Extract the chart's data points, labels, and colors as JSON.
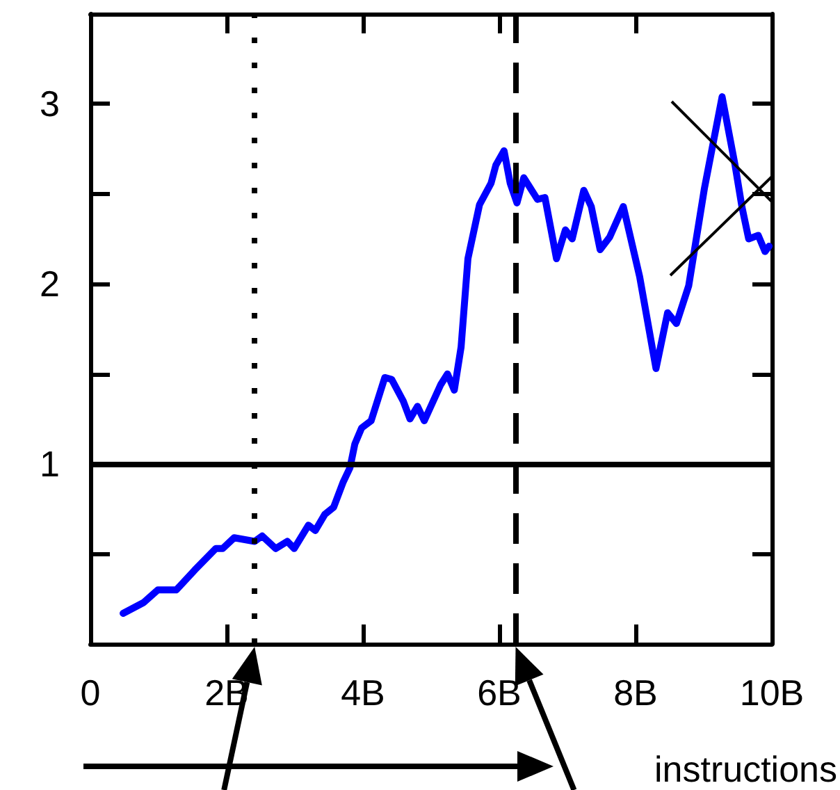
{
  "chart_data": {
    "type": "line",
    "xlabel": "instructions",
    "color": "#0000ff",
    "marker": "none",
    "line_style": "solid",
    "grid": false,
    "x": [
      0.48,
      0.78,
      0.99,
      1.26,
      1.53,
      1.84,
      1.94,
      2.11,
      2.41,
      2.52,
      2.72,
      2.89,
      2.99,
      3.2,
      3.3,
      3.44,
      3.57,
      3.71,
      3.81,
      3.88,
      3.98,
      4.12,
      4.32,
      4.42,
      4.59,
      4.69,
      4.8,
      4.9,
      5.14,
      5.24,
      5.34,
      5.44,
      5.54,
      5.71,
      5.88,
      5.95,
      6.07,
      6.16,
      6.26,
      6.36,
      6.56,
      6.67,
      6.84,
      6.97,
      7.07,
      7.24,
      7.35,
      7.48,
      7.62,
      7.82,
      8.06,
      8.3,
      8.47,
      8.6,
      8.78,
      9.01,
      9.27,
      9.46,
      9.56,
      9.66,
      9.8,
      9.9,
      9.96
    ],
    "values": [
      0.17,
      0.23,
      0.3,
      0.3,
      0.41,
      0.53,
      0.53,
      0.59,
      0.57,
      0.6,
      0.53,
      0.57,
      0.53,
      0.66,
      0.63,
      0.72,
      0.76,
      0.9,
      0.98,
      1.11,
      1.2,
      1.24,
      1.48,
      1.47,
      1.35,
      1.25,
      1.32,
      1.24,
      1.44,
      1.5,
      1.41,
      1.65,
      2.14,
      2.44,
      2.56,
      2.66,
      2.74,
      2.56,
      2.45,
      2.59,
      2.47,
      2.48,
      2.14,
      2.3,
      2.25,
      2.52,
      2.43,
      2.19,
      2.26,
      2.43,
      2.04,
      1.53,
      1.84,
      1.78,
      1.99,
      2.53,
      3.04,
      2.66,
      2.43,
      2.25,
      2.27,
      2.18,
      2.21
    ],
    "xlim": [
      0,
      10
    ],
    "xticks": [
      0,
      {
        "value": 2,
        "label": "2B"
      },
      {
        "value": 4,
        "label": "4B"
      },
      {
        "value": 6,
        "label": "6B"
      },
      {
        "value": 8,
        "label": "8B"
      },
      {
        "value": 10,
        "label": "10B"
      }
    ],
    "ylim": [
      0,
      3.5
    ],
    "yticks": [
      {
        "value": 0.5,
        "label": null
      },
      1,
      {
        "value": 1.5,
        "label": null
      },
      2,
      {
        "value": 2.5,
        "label": null
      },
      3
    ],
    "ref_lines": [
      {
        "axis": "y",
        "value": 1,
        "line_style": "solid",
        "color": "#000000"
      },
      {
        "axis": "x",
        "value": 2.41,
        "line_style": "dotted",
        "color": "#000000"
      },
      {
        "axis": "x",
        "value": 6.24,
        "line_style": "dashed",
        "color": "#000000"
      }
    ]
  }
}
